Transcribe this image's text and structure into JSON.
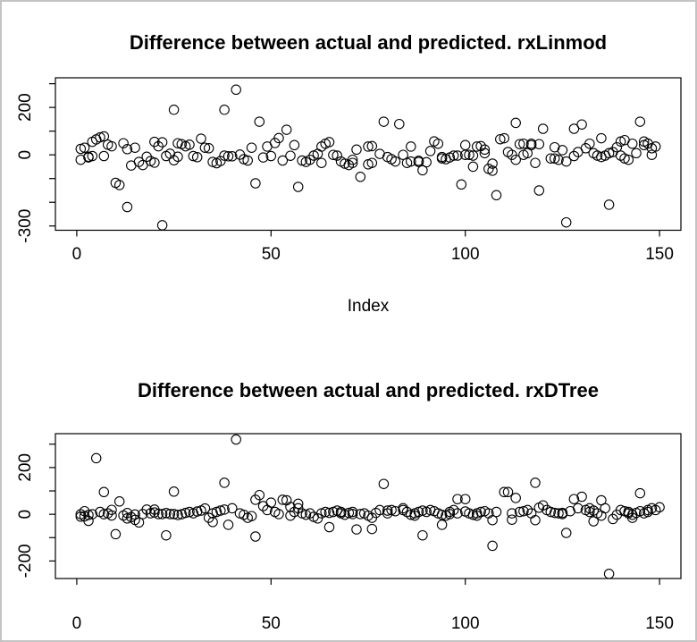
{
  "window": {
    "background": "#ffffff",
    "border_color": "#c3c3c3",
    "point_color": "#000000",
    "axis_color": "#000000"
  },
  "chart_data": [
    {
      "type": "scatter",
      "title": "Difference between actual and predicted. rxLinmod",
      "xlabel": "Index",
      "ylabel": "",
      "marker": "open-circle",
      "legend": "none",
      "grid": false,
      "xlim": [
        -5.5,
        155.5
      ],
      "ylim": [
        -318,
        325
      ],
      "x_ticks": [
        0,
        50,
        100,
        150
      ],
      "x_tick_labels": [
        "0",
        "50",
        "100",
        "150"
      ],
      "y_ticks": [
        300,
        200,
        100,
        0,
        -100,
        -200,
        -300
      ],
      "y_tick_labels": [
        "",
        "200",
        "",
        "0",
        "",
        "",
        "-300"
      ],
      "points": [
        [
          1,
          -21
        ],
        [
          1,
          25
        ],
        [
          2,
          30
        ],
        [
          3,
          -8
        ],
        [
          3,
          -11
        ],
        [
          4,
          -5
        ],
        [
          4,
          55
        ],
        [
          5,
          65
        ],
        [
          6,
          74
        ],
        [
          7,
          78
        ],
        [
          7,
          -5
        ],
        [
          8,
          43
        ],
        [
          9,
          36
        ],
        [
          10,
          -118
        ],
        [
          11,
          -127
        ],
        [
          12,
          49
        ],
        [
          13,
          -220
        ],
        [
          13,
          24
        ],
        [
          14,
          -45
        ],
        [
          15,
          30
        ],
        [
          16,
          -30
        ],
        [
          17,
          -43
        ],
        [
          18,
          -8
        ],
        [
          19,
          -26
        ],
        [
          20,
          -33
        ],
        [
          20,
          55
        ],
        [
          21,
          36
        ],
        [
          22,
          53
        ],
        [
          22,
          -297
        ],
        [
          23,
          -5
        ],
        [
          24,
          5
        ],
        [
          25,
          190
        ],
        [
          25,
          -23
        ],
        [
          26,
          -8
        ],
        [
          26,
          49
        ],
        [
          27,
          45
        ],
        [
          28,
          36
        ],
        [
          29,
          43
        ],
        [
          30,
          -5
        ],
        [
          31,
          -10
        ],
        [
          32,
          68
        ],
        [
          33,
          30
        ],
        [
          34,
          28
        ],
        [
          35,
          -30
        ],
        [
          36,
          -35
        ],
        [
          37,
          -26
        ],
        [
          38,
          -3
        ],
        [
          38,
          190
        ],
        [
          39,
          -6
        ],
        [
          40,
          -6
        ],
        [
          41,
          275
        ],
        [
          42,
          1
        ],
        [
          43,
          -18
        ],
        [
          44,
          -24
        ],
        [
          45,
          30
        ],
        [
          46,
          -120
        ],
        [
          47,
          140
        ],
        [
          48,
          -11
        ],
        [
          49,
          35
        ],
        [
          50,
          -5
        ],
        [
          51,
          50
        ],
        [
          52,
          71
        ],
        [
          53,
          -24
        ],
        [
          54,
          106
        ],
        [
          55,
          -4
        ],
        [
          56,
          41
        ],
        [
          57,
          -135
        ],
        [
          58,
          -24
        ],
        [
          59,
          -30
        ],
        [
          60,
          -21
        ],
        [
          61,
          -3
        ],
        [
          62,
          4
        ],
        [
          63,
          35
        ],
        [
          63,
          -34
        ],
        [
          64,
          47
        ],
        [
          65,
          54
        ],
        [
          66,
          0
        ],
        [
          67,
          -3
        ],
        [
          68,
          -28
        ],
        [
          69,
          -37
        ],
        [
          70,
          -43
        ],
        [
          71,
          -34
        ],
        [
          71,
          -21
        ],
        [
          72,
          22
        ],
        [
          73,
          -93
        ],
        [
          75,
          -40
        ],
        [
          75,
          35
        ],
        [
          76,
          37
        ],
        [
          76,
          -34
        ],
        [
          78,
          4
        ],
        [
          79,
          140
        ],
        [
          80,
          -9
        ],
        [
          81,
          -18
        ],
        [
          82,
          -28
        ],
        [
          83,
          130
        ],
        [
          84,
          0
        ],
        [
          85,
          -34
        ],
        [
          86,
          35
        ],
        [
          86,
          -28
        ],
        [
          88,
          -25
        ],
        [
          88,
          -30
        ],
        [
          89,
          -65
        ],
        [
          90,
          -31
        ],
        [
          91,
          16
        ],
        [
          92,
          57
        ],
        [
          93,
          47
        ],
        [
          94,
          -9
        ],
        [
          94,
          -15
        ],
        [
          95,
          -18
        ],
        [
          96,
          -11
        ],
        [
          97,
          -3
        ],
        [
          98,
          -3
        ],
        [
          99,
          -125
        ],
        [
          100,
          41
        ],
        [
          100,
          0
        ],
        [
          101,
          0
        ],
        [
          102,
          -3
        ],
        [
          102,
          -50
        ],
        [
          103,
          35
        ],
        [
          104,
          37
        ],
        [
          105,
          22
        ],
        [
          105,
          7
        ],
        [
          106,
          -59
        ],
        [
          107,
          -67
        ],
        [
          107,
          -37
        ],
        [
          108,
          -170
        ],
        [
          109,
          66
        ],
        [
          110,
          70
        ],
        [
          111,
          12
        ],
        [
          112,
          0
        ],
        [
          113,
          135
        ],
        [
          113,
          -21
        ],
        [
          114,
          45
        ],
        [
          115,
          0
        ],
        [
          115,
          47
        ],
        [
          116,
          7
        ],
        [
          117,
          47
        ],
        [
          117,
          41
        ],
        [
          118,
          -34
        ],
        [
          119,
          45
        ],
        [
          119,
          -150
        ],
        [
          120,
          110
        ],
        [
          122,
          -15
        ],
        [
          123,
          -15
        ],
        [
          123,
          32
        ],
        [
          124,
          -21
        ],
        [
          125,
          20
        ],
        [
          126,
          -285
        ],
        [
          126,
          -28
        ],
        [
          128,
          -5
        ],
        [
          128,
          110
        ],
        [
          129,
          12
        ],
        [
          130,
          128
        ],
        [
          131,
          28
        ],
        [
          132,
          47
        ],
        [
          133,
          7
        ],
        [
          134,
          -3
        ],
        [
          135,
          -9
        ],
        [
          135,
          70
        ],
        [
          136,
          -3
        ],
        [
          137,
          7
        ],
        [
          137,
          -210
        ],
        [
          138,
          12
        ],
        [
          139,
          32
        ],
        [
          140,
          56
        ],
        [
          140,
          -3
        ],
        [
          141,
          -15
        ],
        [
          141,
          62
        ],
        [
          142,
          -21
        ],
        [
          143,
          47
        ],
        [
          144,
          7
        ],
        [
          145,
          140
        ],
        [
          146,
          41
        ],
        [
          146,
          56
        ],
        [
          147,
          48
        ],
        [
          148,
          28
        ],
        [
          148,
          0
        ],
        [
          149,
          35
        ]
      ]
    },
    {
      "type": "scatter",
      "title": "Difference between actual and predicted. rxDTree",
      "xlabel": "",
      "ylabel": "",
      "marker": "open-circle",
      "legend": "none",
      "grid": false,
      "xlim": [
        -5.5,
        155.5
      ],
      "ylim": [
        -275,
        345
      ],
      "x_ticks": [
        0,
        50,
        100,
        150
      ],
      "x_tick_labels": [
        "0",
        "50",
        "100",
        "150"
      ],
      "y_ticks": [
        300,
        200,
        100,
        0,
        -100,
        -200
      ],
      "y_tick_labels": [
        "",
        "200",
        "",
        "0",
        "",
        "-200"
      ],
      "points": [
        [
          1,
          0
        ],
        [
          1,
          -10
        ],
        [
          2,
          -9
        ],
        [
          2,
          13
        ],
        [
          3,
          -3
        ],
        [
          3,
          -28
        ],
        [
          4,
          0
        ],
        [
          5,
          240
        ],
        [
          6,
          10
        ],
        [
          7,
          95
        ],
        [
          7,
          0
        ],
        [
          8,
          4
        ],
        [
          9,
          -5
        ],
        [
          9,
          19
        ],
        [
          10,
          -85
        ],
        [
          11,
          55
        ],
        [
          12,
          -5
        ],
        [
          13,
          -18
        ],
        [
          13,
          5
        ],
        [
          14,
          -12
        ],
        [
          15,
          -24
        ],
        [
          15,
          -1
        ],
        [
          16,
          -35
        ],
        [
          17,
          1
        ],
        [
          18,
          20
        ],
        [
          19,
          4
        ],
        [
          20,
          8
        ],
        [
          20,
          20
        ],
        [
          21,
          1
        ],
        [
          22,
          1
        ],
        [
          23,
          5
        ],
        [
          23,
          -90
        ],
        [
          24,
          1
        ],
        [
          25,
          97
        ],
        [
          25,
          1
        ],
        [
          26,
          -3
        ],
        [
          27,
          0
        ],
        [
          28,
          6
        ],
        [
          29,
          10
        ],
        [
          30,
          4
        ],
        [
          31,
          12
        ],
        [
          32,
          16
        ],
        [
          33,
          25
        ],
        [
          34,
          -15
        ],
        [
          35,
          -33
        ],
        [
          35,
          4
        ],
        [
          36,
          10
        ],
        [
          37,
          16
        ],
        [
          38,
          135
        ],
        [
          38,
          20
        ],
        [
          39,
          -45
        ],
        [
          40,
          26
        ],
        [
          41,
          320
        ],
        [
          42,
          4
        ],
        [
          43,
          -2
        ],
        [
          44,
          -15
        ],
        [
          45,
          -8
        ],
        [
          46,
          -95
        ],
        [
          46,
          62
        ],
        [
          47,
          82
        ],
        [
          48,
          35
        ],
        [
          49,
          18
        ],
        [
          50,
          50
        ],
        [
          51,
          10
        ],
        [
          52,
          1
        ],
        [
          53,
          62
        ],
        [
          54,
          60
        ],
        [
          55,
          31
        ],
        [
          55,
          -6
        ],
        [
          56,
          10
        ],
        [
          57,
          45
        ],
        [
          57,
          26
        ],
        [
          58,
          4
        ],
        [
          59,
          -2
        ],
        [
          60,
          4
        ],
        [
          61,
          -11
        ],
        [
          62,
          -18
        ],
        [
          63,
          4
        ],
        [
          64,
          10
        ],
        [
          65,
          -55
        ],
        [
          65,
          6
        ],
        [
          66,
          10
        ],
        [
          67,
          16
        ],
        [
          68,
          10
        ],
        [
          68,
          4
        ],
        [
          69,
          -2
        ],
        [
          70,
          6
        ],
        [
          71,
          1
        ],
        [
          71,
          10
        ],
        [
          72,
          -65
        ],
        [
          73,
          1
        ],
        [
          74,
          4
        ],
        [
          75,
          -6
        ],
        [
          76,
          -15
        ],
        [
          76,
          -63
        ],
        [
          77,
          6
        ],
        [
          78,
          18
        ],
        [
          79,
          130
        ],
        [
          80,
          4
        ],
        [
          80,
          16
        ],
        [
          81,
          18
        ],
        [
          82,
          13
        ],
        [
          84,
          26
        ],
        [
          84,
          18
        ],
        [
          85,
          10
        ],
        [
          86,
          -2
        ],
        [
          87,
          -6
        ],
        [
          87,
          4
        ],
        [
          88,
          10
        ],
        [
          89,
          -90
        ],
        [
          89,
          16
        ],
        [
          90,
          10
        ],
        [
          91,
          18
        ],
        [
          92,
          13
        ],
        [
          93,
          4
        ],
        [
          94,
          -2
        ],
        [
          94,
          -45
        ],
        [
          95,
          -6
        ],
        [
          96,
          1
        ],
        [
          96,
          10
        ],
        [
          97,
          18
        ],
        [
          98,
          65
        ],
        [
          98,
          4
        ],
        [
          100,
          65
        ],
        [
          100,
          12
        ],
        [
          101,
          4
        ],
        [
          102,
          -2
        ],
        [
          103,
          -6
        ],
        [
          103,
          4
        ],
        [
          104,
          10
        ],
        [
          105,
          13
        ],
        [
          106,
          4
        ],
        [
          107,
          -25
        ],
        [
          107,
          -135
        ],
        [
          108,
          10
        ],
        [
          110,
          95
        ],
        [
          111,
          95
        ],
        [
          112,
          -23
        ],
        [
          112,
          4
        ],
        [
          113,
          70
        ],
        [
          114,
          10
        ],
        [
          115,
          13
        ],
        [
          116,
          18
        ],
        [
          117,
          4
        ],
        [
          118,
          135
        ],
        [
          118,
          -25
        ],
        [
          119,
          28
        ],
        [
          120,
          38
        ],
        [
          121,
          18
        ],
        [
          122,
          10
        ],
        [
          123,
          6
        ],
        [
          124,
          4
        ],
        [
          125,
          1
        ],
        [
          125,
          6
        ],
        [
          126,
          -80
        ],
        [
          127,
          13
        ],
        [
          128,
          65
        ],
        [
          129,
          26
        ],
        [
          130,
          75
        ],
        [
          131,
          18
        ],
        [
          132,
          26
        ],
        [
          132,
          10
        ],
        [
          133,
          16
        ],
        [
          133,
          -30
        ],
        [
          134,
          4
        ],
        [
          135,
          60
        ],
        [
          135,
          -6
        ],
        [
          136,
          26
        ],
        [
          137,
          -255
        ],
        [
          138,
          -20
        ],
        [
          139,
          -2
        ],
        [
          140,
          18
        ],
        [
          141,
          13
        ],
        [
          142,
          10
        ],
        [
          142,
          4
        ],
        [
          143,
          -2
        ],
        [
          143,
          -15
        ],
        [
          144,
          6
        ],
        [
          145,
          90
        ],
        [
          145,
          13
        ],
        [
          146,
          4
        ],
        [
          147,
          10
        ],
        [
          147,
          18
        ],
        [
          148,
          26
        ],
        [
          149,
          18
        ],
        [
          150,
          30
        ]
      ]
    }
  ]
}
